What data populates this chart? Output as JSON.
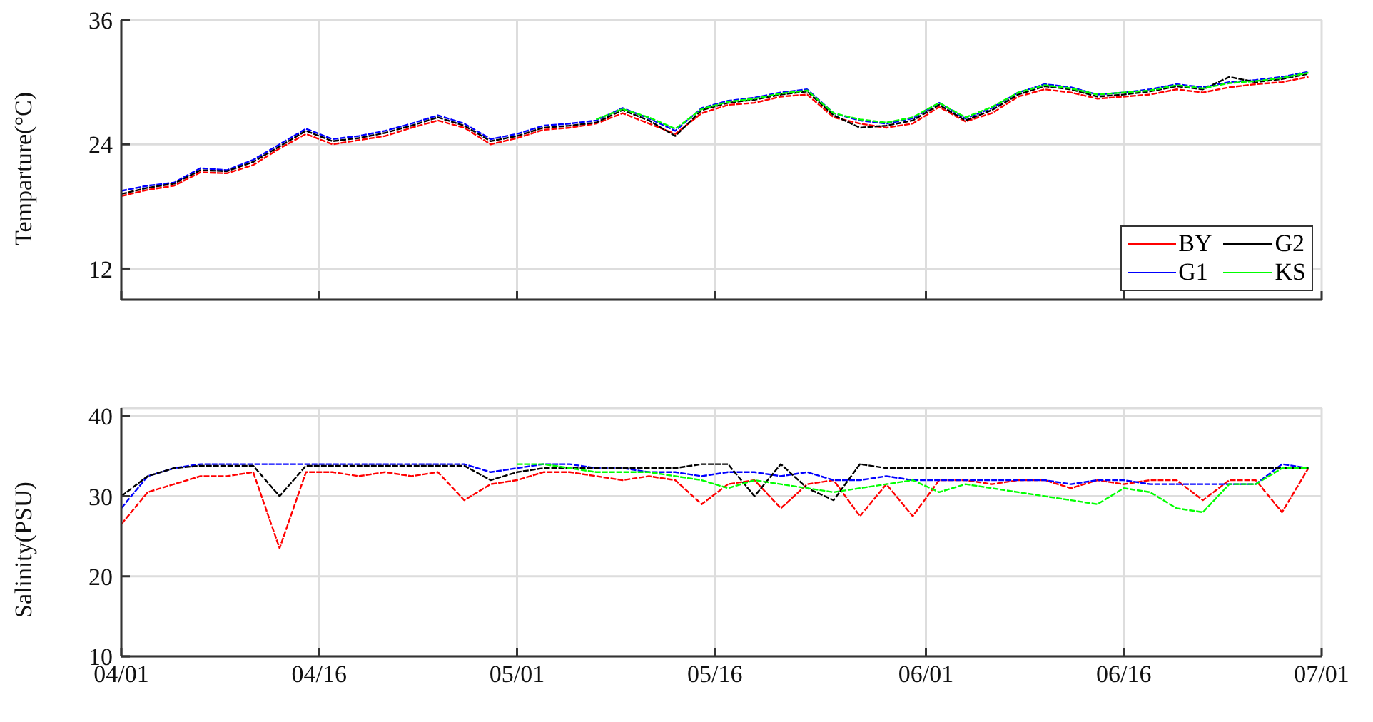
{
  "chart_data": [
    {
      "type": "line",
      "ylabel": "Temparture(°C)",
      "x": [
        "--04-01",
        "--04-03",
        "--04-05",
        "--04-07",
        "--04-09",
        "--04-11",
        "--04-13",
        "--04-15",
        "--04-17",
        "--04-19",
        "--04-21",
        "--04-23",
        "--04-25",
        "--04-27",
        "--04-29",
        "--05-01",
        "--05-03",
        "--05-05",
        "--05-07",
        "--05-09",
        "--05-11",
        "--05-13",
        "--05-15",
        "--05-17",
        "--05-19",
        "--05-21",
        "--05-23",
        "--05-25",
        "--05-27",
        "--05-29",
        "--05-31",
        "--06-02",
        "--06-04",
        "--06-06",
        "--06-08",
        "--06-10",
        "--06-12",
        "--06-14",
        "--06-16",
        "--06-18",
        "--06-20",
        "--06-22",
        "--06-24",
        "--06-26",
        "--06-28",
        "--06-30"
      ],
      "series": [
        {
          "name": "BY",
          "color": "#ff0000",
          "values": [
            19,
            19.6,
            20,
            21.3,
            21.2,
            22,
            23.6,
            25,
            24,
            24.4,
            24.8,
            25.6,
            26.3,
            25.6,
            24,
            24.6,
            25.4,
            25.6,
            26,
            27,
            26,
            25,
            27,
            27.8,
            28,
            28.6,
            28.8,
            26.6,
            26,
            25.6,
            26,
            27.6,
            26.2,
            27,
            28.6,
            29.3,
            29,
            28.4,
            28.6,
            28.8,
            29.3,
            29,
            29.5,
            29.8,
            30,
            30.5
          ]
        },
        {
          "name": "G1",
          "color": "#0000ff",
          "values": [
            19.5,
            20,
            20.3,
            21.7,
            21.5,
            22.5,
            24,
            25.5,
            24.5,
            24.8,
            25.3,
            26,
            26.8,
            26,
            24.5,
            25,
            25.8,
            26,
            26.3,
            27.5,
            26.5,
            25.3,
            27.5,
            28.2,
            28.5,
            29,
            29.3,
            27,
            26.3,
            26,
            26.5,
            28,
            26.5,
            27.5,
            29,
            29.8,
            29.5,
            28.8,
            29,
            29.3,
            29.8,
            29.5,
            30,
            30.2,
            30.5,
            31
          ]
        },
        {
          "name": "G2",
          "color": "#000000",
          "values": [
            19.2,
            19.8,
            20.2,
            21.5,
            21.4,
            22.3,
            23.8,
            25.3,
            24.3,
            24.6,
            25.1,
            25.8,
            26.6,
            25.8,
            24.3,
            24.8,
            25.6,
            25.8,
            26.1,
            27.3,
            26.3,
            24.8,
            27.3,
            28,
            28.3,
            28.8,
            29.1,
            26.8,
            25.6,
            25.8,
            26.3,
            27.8,
            26.3,
            27.3,
            28.8,
            29.6,
            29.3,
            28.6,
            28.8,
            29.1,
            29.6,
            29.3,
            30.5,
            30,
            30.3,
            30.8
          ]
        },
        {
          "name": "KS",
          "color": "#00ff00",
          "values": [
            null,
            null,
            null,
            null,
            null,
            null,
            null,
            null,
            null,
            null,
            null,
            null,
            null,
            null,
            null,
            null,
            null,
            null,
            26.4,
            27.4,
            26.6,
            25.5,
            27.4,
            28.1,
            28.4,
            28.9,
            29.2,
            27,
            26.4,
            26.1,
            26.6,
            28,
            26.6,
            27.6,
            29,
            29.7,
            29.4,
            28.8,
            29,
            29.2,
            29.7,
            29.4,
            29.9,
            30.1,
            30.4,
            30.9
          ]
        }
      ],
      "xlim": [
        "--04-01",
        "--07-01"
      ],
      "xticks": [
        {
          "value": "--04-01",
          "label": "04/01"
        },
        {
          "value": "--04-16",
          "label": "04/16"
        },
        {
          "value": "--05-01",
          "label": "05/01"
        },
        {
          "value": "--05-16",
          "label": "05/16"
        },
        {
          "value": "--06-01",
          "label": "06/01"
        },
        {
          "value": "--06-16",
          "label": "06/16"
        },
        {
          "value": "--07-01",
          "label": "07/01"
        }
      ],
      "ylim": [
        9,
        36
      ],
      "yticks": [
        12,
        24,
        36
      ],
      "grid": true,
      "legend": "bottom right",
      "tick_labels": "y",
      "line_style": "dashed"
    },
    {
      "type": "line",
      "ylabel": "Salinity(PSU)",
      "x": [
        "--04-01",
        "--04-03",
        "--04-05",
        "--04-07",
        "--04-09",
        "--04-11",
        "--04-13",
        "--04-15",
        "--04-17",
        "--04-19",
        "--04-21",
        "--04-23",
        "--04-25",
        "--04-27",
        "--04-29",
        "--05-01",
        "--05-03",
        "--05-05",
        "--05-07",
        "--05-09",
        "--05-11",
        "--05-13",
        "--05-15",
        "--05-17",
        "--05-19",
        "--05-21",
        "--05-23",
        "--05-25",
        "--05-27",
        "--05-29",
        "--05-31",
        "--06-02",
        "--06-04",
        "--06-06",
        "--06-08",
        "--06-10",
        "--06-12",
        "--06-14",
        "--06-16",
        "--06-18",
        "--06-20",
        "--06-22",
        "--06-24",
        "--06-26",
        "--06-28",
        "--06-30"
      ],
      "series": [
        {
          "color": "#ff0000",
          "values": [
            26.5,
            30.5,
            31.5,
            32.5,
            32.5,
            33,
            23.5,
            33,
            33,
            32.5,
            33,
            32.5,
            33,
            29.5,
            31.5,
            32,
            33,
            33,
            32.5,
            32,
            32.5,
            32,
            29,
            31.5,
            32,
            28.5,
            31.5,
            32,
            27.5,
            31.5,
            27.5,
            32,
            32,
            31.5,
            32,
            32,
            31,
            32,
            31.5,
            32,
            32,
            29.5,
            32,
            32,
            28,
            33.5
          ]
        },
        {
          "color": "#0000ff",
          "values": [
            28.5,
            32.5,
            33.5,
            34,
            34,
            34,
            34,
            34,
            34,
            34,
            34,
            34,
            34,
            34,
            33,
            33.5,
            34,
            34,
            33.5,
            33.5,
            33,
            33,
            32.5,
            33,
            33,
            32.5,
            33,
            32,
            32,
            32.5,
            32,
            32,
            32,
            32,
            32,
            32,
            31.5,
            32,
            32,
            31.5,
            31.5,
            31.5,
            31.5,
            31.5,
            34,
            33.5
          ]
        },
        {
          "color": "#000000",
          "values": [
            30,
            32.5,
            33.5,
            33.8,
            33.8,
            33.8,
            30,
            33.8,
            33.8,
            33.8,
            33.8,
            33.8,
            33.8,
            33.8,
            32,
            33,
            33.5,
            33.5,
            33.5,
            33.5,
            33.5,
            33.5,
            34,
            34,
            30,
            34,
            31,
            29.5,
            34,
            33.5,
            33.5,
            33.5,
            33.5,
            33.5,
            33.5,
            33.5,
            33.5,
            33.5,
            33.5,
            33.5,
            33.5,
            33.5,
            33.5,
            33.5,
            33.5,
            33.5
          ]
        },
        {
          "color": "#00ff00",
          "values": [
            null,
            null,
            null,
            null,
            null,
            null,
            null,
            null,
            null,
            null,
            null,
            null,
            null,
            null,
            null,
            34,
            34,
            33.5,
            33,
            33,
            33,
            32.5,
            32,
            31,
            32,
            31.5,
            31,
            30.5,
            31,
            31.5,
            32,
            30.5,
            31.5,
            31,
            30.5,
            30,
            29.5,
            29,
            31,
            30.5,
            28.5,
            28,
            31.5,
            31.5,
            33.5,
            33.5
          ]
        }
      ],
      "xlim": [
        "--04-01",
        "--07-01"
      ],
      "xticks": [
        {
          "value": "--04-01",
          "label": "04/01"
        },
        {
          "value": "--04-16",
          "label": "04/16"
        },
        {
          "value": "--05-01",
          "label": "05/01"
        },
        {
          "value": "--05-16",
          "label": "05/16"
        },
        {
          "value": "--06-01",
          "label": "06/01"
        },
        {
          "value": "--06-16",
          "label": "06/16"
        },
        {
          "value": "--07-01",
          "label": "07/01"
        }
      ],
      "ylim": [
        10,
        41
      ],
      "yticks": [
        10,
        20,
        30,
        40
      ],
      "grid": true,
      "line_style": "dashed"
    }
  ]
}
